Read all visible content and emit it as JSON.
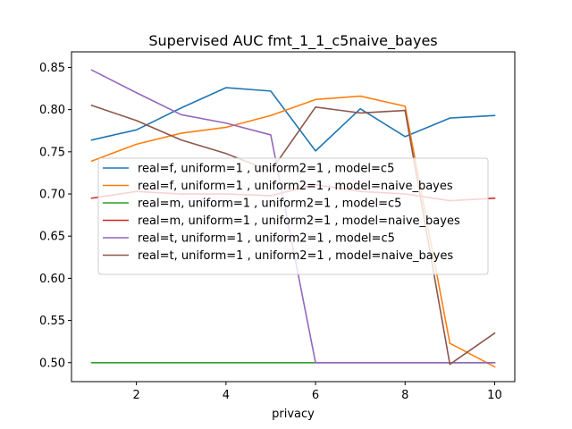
{
  "chart_data": {
    "type": "line",
    "title": "Supervised AUC fmt_1_1_c5naive_bayes",
    "xlabel": "privacy",
    "ylabel": "",
    "xlim": [
      0.55,
      10.45
    ],
    "ylim": [
      0.4775,
      0.8685
    ],
    "xticks": [
      2,
      4,
      6,
      8,
      10
    ],
    "yticks": [
      0.5,
      0.55,
      0.6,
      0.65,
      0.7,
      0.75,
      0.8,
      0.85
    ],
    "ytick_labels": [
      "0.50",
      "0.55",
      "0.60",
      "0.65",
      "0.70",
      "0.75",
      "0.80",
      "0.85"
    ],
    "x": [
      1,
      2,
      3,
      4,
      5,
      6,
      7,
      8,
      9,
      10
    ],
    "legend_position": "center-left",
    "grid": false,
    "series": [
      {
        "name": "real=f, uniform=1 , uniform2=1 , model=c5",
        "color": "#1f77b4",
        "values": [
          0.764,
          0.776,
          0.802,
          0.826,
          0.822,
          0.751,
          0.801,
          0.768,
          0.79,
          0.793
        ]
      },
      {
        "name": "real=f, uniform=1 , uniform2=1 , model=naive_bayes",
        "color": "#ff7f0e",
        "values": [
          0.739,
          0.759,
          0.772,
          0.779,
          0.793,
          0.812,
          0.816,
          0.804,
          0.523,
          0.495
        ]
      },
      {
        "name": "real=m, uniform=1 , uniform2=1 , model=c5",
        "color": "#2ca02c",
        "values": [
          0.5,
          0.5,
          0.5,
          0.5,
          0.5,
          0.5,
          0.5,
          0.5,
          0.5,
          0.5
        ]
      },
      {
        "name": "real=m, uniform=1 , uniform2=1 , model=naive_bayes",
        "color": "#d62728",
        "values": [
          0.695,
          0.703,
          0.7,
          0.7,
          0.698,
          0.711,
          0.703,
          0.7,
          0.692,
          0.695
        ]
      },
      {
        "name": "real=t, uniform=1 , uniform2=1 , model=c5",
        "color": "#9467bd",
        "values": [
          0.847,
          0.82,
          0.794,
          0.784,
          0.77,
          0.5,
          0.5,
          0.5,
          0.5,
          0.5
        ]
      },
      {
        "name": "real=t, uniform=1 , uniform2=1 , model=naive_bayes",
        "color": "#8c564b",
        "values": [
          0.805,
          0.787,
          0.764,
          0.748,
          0.727,
          0.803,
          0.796,
          0.799,
          0.498,
          0.535
        ]
      }
    ]
  }
}
